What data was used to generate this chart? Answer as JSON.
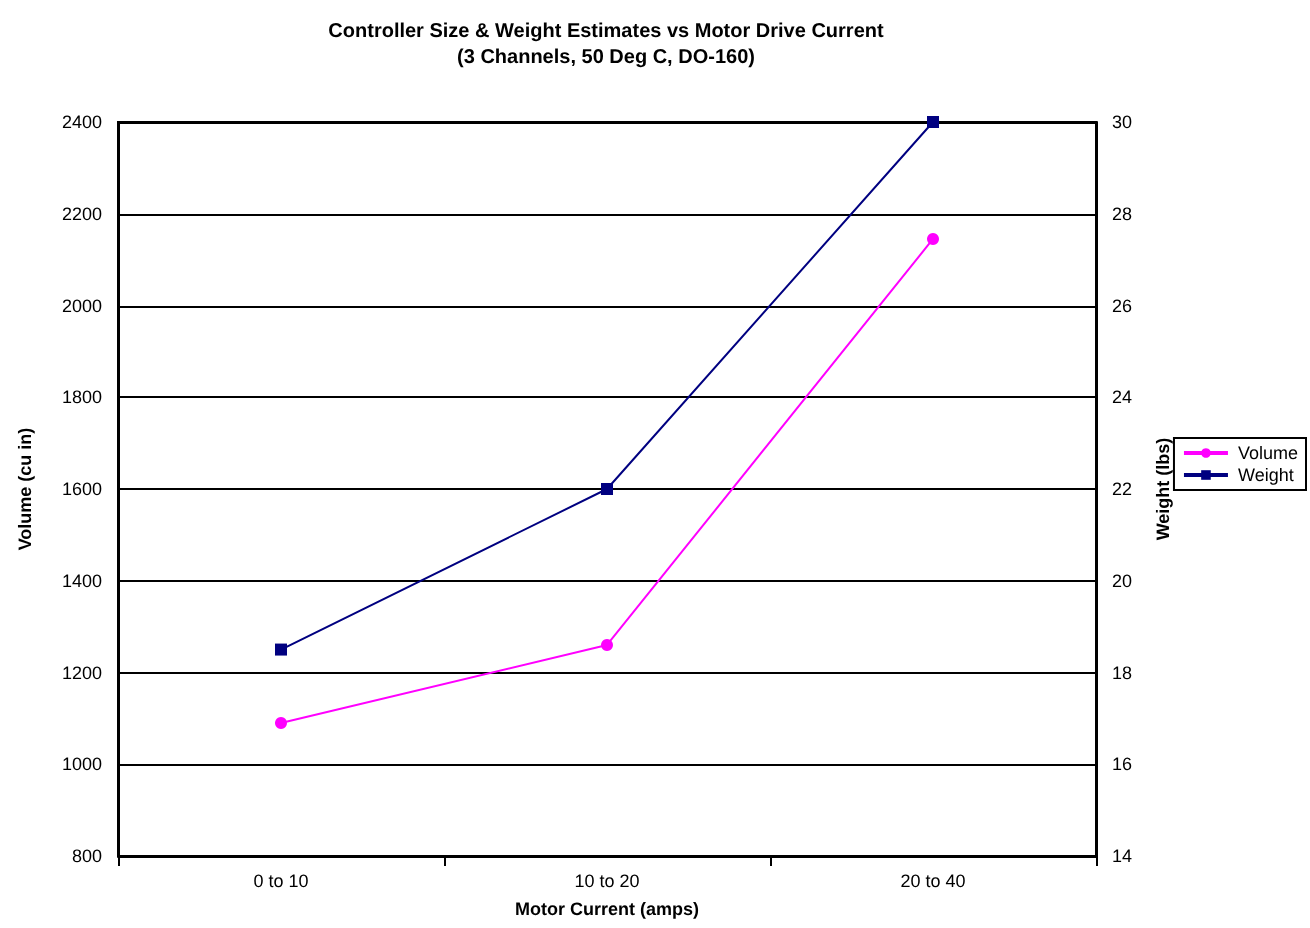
{
  "chart_data": {
    "type": "line",
    "title": "Controller Size & Weight Estimates vs Motor Drive Current",
    "subtitle": "(3 Channels, 50 Deg C, DO-160)",
    "xlabel": "Motor Current (amps)",
    "ylabel": "Volume (cu in)",
    "y2label": "Weight (lbs)",
    "categories": [
      "0 to 10",
      "10 to 20",
      "20 to 40"
    ],
    "series": [
      {
        "name": "Volume",
        "color": "#ff00ff",
        "marker": "circle",
        "values": [
          1090,
          1260,
          2145
        ]
      },
      {
        "name": "Weight",
        "color": "#000080",
        "marker": "square",
        "axis": "y2",
        "values": [
          18.5,
          22,
          30
        ]
      }
    ],
    "ylim": [
      800,
      2400
    ],
    "yticks": [
      800,
      1000,
      1200,
      1400,
      1600,
      1800,
      2000,
      2200,
      2400
    ],
    "y2lim": [
      14,
      30
    ],
    "y2ticks": [
      14,
      16,
      18,
      20,
      22,
      24,
      26,
      28,
      30
    ],
    "grid": "y",
    "legend": "right",
    "line_style": "solid"
  }
}
